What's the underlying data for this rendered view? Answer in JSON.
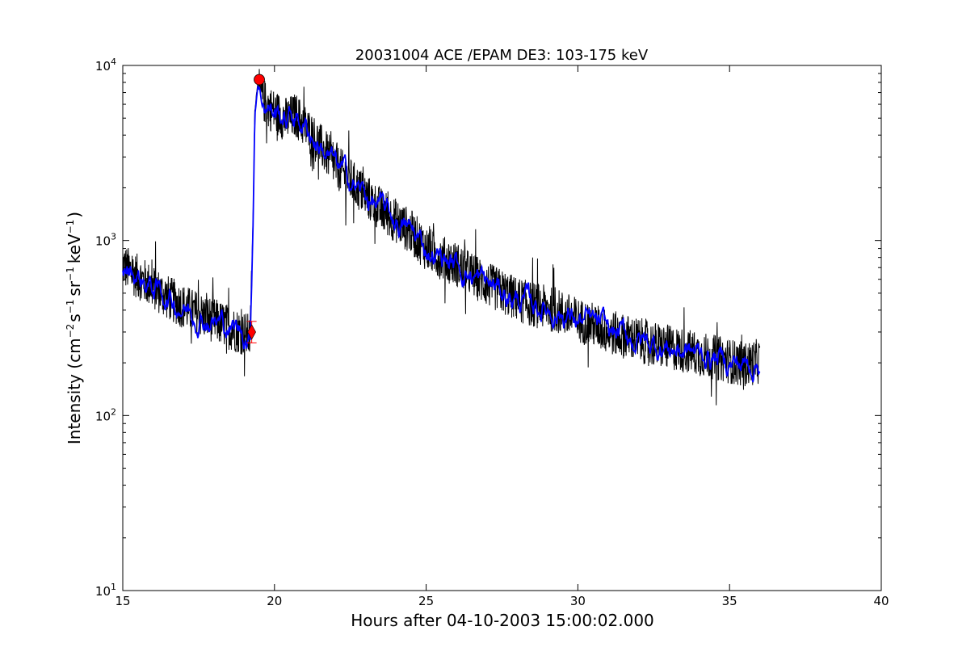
{
  "chart_data": {
    "type": "line",
    "title": "20031004 ACE /EPAM DE3: 103-175 keV",
    "xlabel": "Hours after 04-10-2003 15:00:02.000",
    "ylabel": {
      "base": "Intensity (cm",
      "exp1": "−2",
      "mid1": "s",
      "exp2": "−1",
      "mid2": "sr",
      "exp3": "−1",
      "mid3": "keV",
      "exp4": "−1",
      "end": ")"
    },
    "xlim": [
      15,
      40
    ],
    "ylim": [
      10,
      10000
    ],
    "yscale": "log",
    "xticks": [
      "15",
      "20",
      "25",
      "30",
      "35",
      "40"
    ],
    "yticks": [
      {
        "base": "10",
        "exp": "1"
      },
      {
        "base": "10",
        "exp": "2"
      },
      {
        "base": "10",
        "exp": "3"
      },
      {
        "base": "10",
        "exp": "4"
      }
    ],
    "grid": false,
    "series": [
      {
        "style": "raw",
        "color": "#000000",
        "x": [
          15.0,
          15.5,
          16.0,
          16.5,
          17.0,
          17.5,
          18.0,
          18.5,
          19.0,
          19.2,
          19.3,
          19.35,
          19.45,
          19.5,
          19.7,
          19.9,
          20.1,
          20.4,
          20.7,
          21.0,
          21.5,
          22.0,
          22.5,
          23.0,
          23.5,
          24.0,
          24.5,
          25.0,
          25.5,
          26.0,
          26.5,
          27.0,
          27.5,
          28.0,
          28.5,
          29.0,
          29.5,
          30.0,
          30.5,
          31.0,
          31.5,
          32.0,
          32.5,
          33.0,
          33.5,
          34.0,
          34.5,
          35.0,
          35.5,
          36.0
        ],
        "y": [
          720,
          620,
          540,
          470,
          420,
          380,
          350,
          320,
          295,
          280,
          1500,
          5500,
          8100,
          7200,
          6100,
          5600,
          5300,
          4900,
          5200,
          4500,
          3500,
          2700,
          2200,
          1800,
          1500,
          1300,
          1120,
          900,
          800,
          730,
          640,
          560,
          510,
          460,
          430,
          410,
          385,
          350,
          330,
          300,
          285,
          270,
          255,
          245,
          235,
          225,
          215,
          205,
          195,
          205
        ],
        "noise": 0.13
      },
      {
        "style": "smoothed",
        "color": "#0000ff",
        "x": [
          15.0,
          15.5,
          16.0,
          16.5,
          17.0,
          17.5,
          18.0,
          18.5,
          19.0,
          19.2,
          19.3,
          19.35,
          19.45,
          19.5,
          19.7,
          19.9,
          20.1,
          20.4,
          20.7,
          21.0,
          21.5,
          22.0,
          22.5,
          23.0,
          23.5,
          24.0,
          24.5,
          25.0,
          25.5,
          26.0,
          26.5,
          27.0,
          27.5,
          28.0,
          28.5,
          29.0,
          29.5,
          30.0,
          30.5,
          31.0,
          31.5,
          32.0,
          32.5,
          33.0,
          33.5,
          34.0,
          34.5,
          35.0,
          35.5,
          36.0
        ],
        "y": [
          720,
          620,
          540,
          470,
          420,
          380,
          350,
          320,
          295,
          280,
          1500,
          5500,
          8100,
          7200,
          6100,
          5600,
          5300,
          4900,
          5200,
          4500,
          3500,
          2700,
          2200,
          1800,
          1500,
          1300,
          1120,
          900,
          800,
          730,
          640,
          560,
          510,
          460,
          430,
          410,
          385,
          350,
          330,
          300,
          285,
          270,
          255,
          245,
          235,
          225,
          215,
          205,
          195,
          205
        ],
        "noise": 0.04
      }
    ],
    "markers": [
      {
        "kind": "onset",
        "shape": "diamond",
        "color": "#ff0000",
        "x": 19.25,
        "y": 300,
        "yerr": [
          260,
          345
        ]
      },
      {
        "kind": "peak",
        "shape": "circle",
        "color": "#ff0000",
        "x": 19.5,
        "y": 8300
      }
    ]
  }
}
